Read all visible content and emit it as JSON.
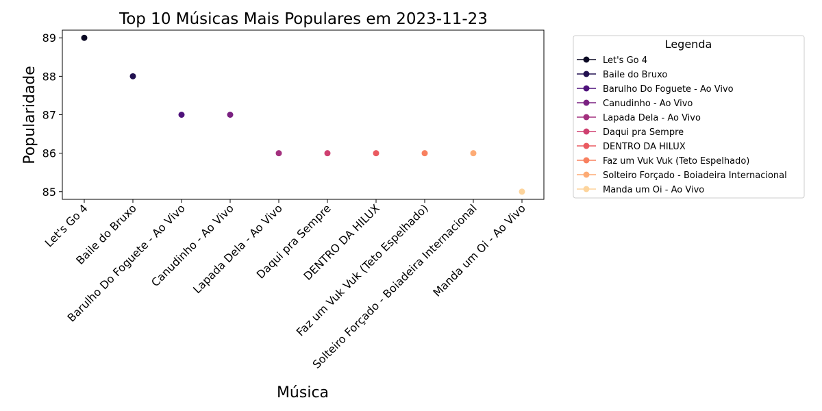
{
  "chart_data": {
    "type": "scatter",
    "title": "Top 10 Músicas Mais Populares em 2023-11-23",
    "xlabel": "Música",
    "ylabel": "Popularidade",
    "ylim": [
      84.8,
      89.2
    ],
    "yticks": [
      85,
      86,
      87,
      88,
      89
    ],
    "grid": false,
    "legend": {
      "title": "Legenda",
      "placement": "outside-right-top"
    },
    "categories": [
      "Let's Go 4",
      "Baile do Bruxo",
      "Barulho Do Foguete - Ao Vivo",
      "Canudinho - Ao Vivo",
      "Lapada Dela - Ao Vivo",
      "Daqui pra Sempre",
      "DENTRO DA HILUX",
      "Faz um Vuk Vuk (Teto Espelhado)",
      "Solteiro Forçado - Boiadeira Internacional",
      "Manda um Oi - Ao Vivo"
    ],
    "series": [
      {
        "name": "Let's Go 4",
        "x": "Let's Go 4",
        "y": 89,
        "color": "#0b0924"
      },
      {
        "name": "Baile do Bruxo",
        "x": "Baile do Bruxo",
        "y": 88,
        "color": "#221150"
      },
      {
        "name": "Barulho Do Foguete - Ao Vivo",
        "x": "Barulho Do Foguete - Ao Vivo",
        "y": 87,
        "color": "#4f127b"
      },
      {
        "name": "Canudinho - Ao Vivo",
        "x": "Canudinho - Ao Vivo",
        "y": 87,
        "color": "#7a2181"
      },
      {
        "name": "Lapada Dela - Ao Vivo",
        "x": "Lapada Dela - Ao Vivo",
        "y": 86,
        "color": "#a3307e"
      },
      {
        "name": "Daqui pra Sempre",
        "x": "Daqui pra Sempre",
        "y": 86,
        "color": "#cf4070"
      },
      {
        "name": "DENTRO DA HILUX",
        "x": "DENTRO DA HILUX",
        "y": 86,
        "color": "#ea5a60"
      },
      {
        "name": "Faz um Vuk Vuk (Teto Espelhado)",
        "x": "Faz um Vuk Vuk (Teto Espelhado)",
        "y": 86,
        "color": "#f8805f"
      },
      {
        "name": "Solteiro Forçado - Boiadeira Internacional",
        "x": "Solteiro Forçado - Boiadeira Internacional",
        "y": 86,
        "color": "#fdab75"
      },
      {
        "name": "Manda um Oi - Ao Vivo",
        "x": "Manda um Oi - Ao Vivo",
        "y": 85,
        "color": "#fdd49c"
      }
    ]
  }
}
